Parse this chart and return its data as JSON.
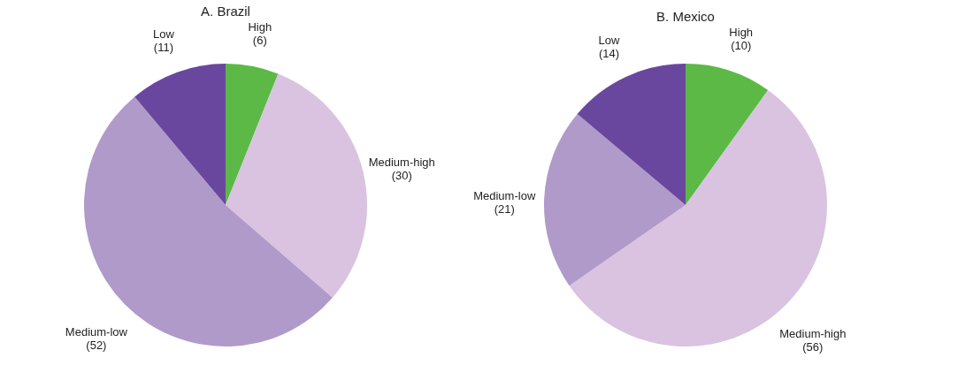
{
  "chart_data": [
    {
      "type": "pie",
      "title": "A. Brazil",
      "categories": [
        "High",
        "Medium-high",
        "Medium-low",
        "Low"
      ],
      "values": [
        6,
        30,
        52,
        11
      ],
      "colors": [
        "#5cb946",
        "#d9c3e0",
        "#b09ac9",
        "#6a479e"
      ],
      "value_labels": [
        "(6)",
        "(30)",
        "(52)",
        "(11)"
      ]
    },
    {
      "type": "pie",
      "title": "B. Mexico",
      "categories": [
        "High",
        "Medium-high",
        "Medium-low",
        "Low"
      ],
      "values": [
        10,
        56,
        21,
        14
      ],
      "colors": [
        "#5cb946",
        "#d9c3e0",
        "#b09ac9",
        "#6a479e"
      ],
      "value_labels": [
        "(10)",
        "(56)",
        "(21)",
        "(14)"
      ]
    }
  ]
}
